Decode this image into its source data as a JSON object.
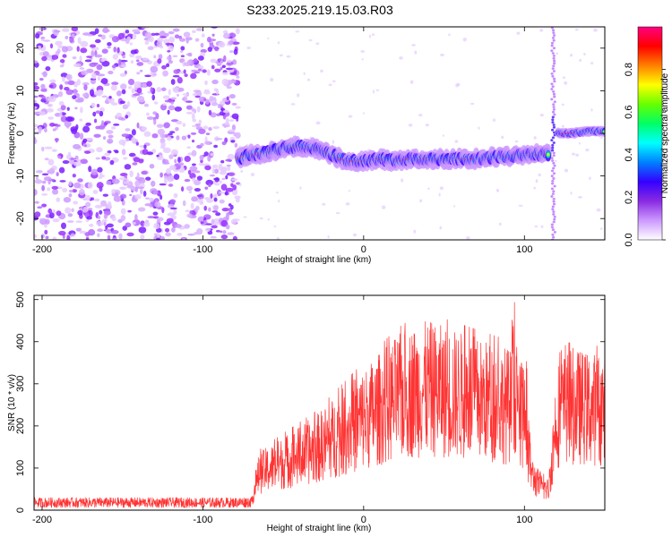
{
  "title": "S233.2025.219.15.03.R03",
  "chart_data": [
    {
      "type": "heatmap",
      "xlabel": "Height of straight line (km)",
      "ylabel": "Frequency (Hz)",
      "xlim": [
        -205,
        150
      ],
      "ylim": [
        -25,
        25
      ],
      "xticks": [
        -200,
        -100,
        0,
        100
      ],
      "yticks": [
        20,
        10,
        0,
        -10,
        -20
      ],
      "colorbar": {
        "label": "Normalized spectral amplitude",
        "range": [
          0,
          1
        ],
        "ticks": [
          "0.0",
          "0.2",
          "0.4",
          "0.6",
          "0.8"
        ],
        "colors": [
          "#ffffff",
          "#cc99ff",
          "#8a2be2",
          "#3300ff",
          "#0080ff",
          "#00ffff",
          "#00ff66",
          "#66ff00",
          "#ffff00",
          "#ff8000",
          "#ff0000",
          "#ff0080"
        ]
      },
      "ridge": {
        "x": [
          -78,
          -70,
          -60,
          -50,
          -40,
          -30,
          -20,
          -10,
          0,
          10,
          20,
          30,
          40,
          50,
          60,
          70,
          80,
          90,
          100,
          110,
          115
        ],
        "y": [
          -6,
          -5,
          -4.5,
          -3.5,
          -3,
          -3.5,
          -5,
          -6.5,
          -6.5,
          -6,
          -6.5,
          -6,
          -6,
          -6,
          -6,
          -6,
          -5.5,
          -5.5,
          -5,
          -5,
          -5
        ]
      },
      "ridge_late": {
        "x": [
          121,
          130,
          140,
          150
        ],
        "y": [
          0,
          0,
          0.5,
          0.5
        ]
      }
    },
    {
      "type": "line",
      "xlabel": "Height of straight line (km)",
      "ylabel": "SNR (10 * v/v)",
      "xlim": [
        -205,
        150
      ],
      "ylim": [
        0,
        510
      ],
      "xticks": [
        -200,
        -100,
        0,
        100
      ],
      "yticks": [
        0,
        100,
        200,
        300,
        400,
        500
      ],
      "color": "#ff3333",
      "envelope": {
        "x": [
          -205,
          -80,
          -70,
          -65,
          -50,
          -30,
          -10,
          0,
          10,
          20,
          30,
          40,
          50,
          60,
          70,
          80,
          90,
          95,
          100,
          105,
          110,
          115,
          120,
          125,
          130,
          140,
          150
        ],
        "y": [
          20,
          20,
          22,
          110,
          140,
          180,
          240,
          270,
          300,
          330,
          350,
          360,
          350,
          340,
          330,
          320,
          310,
          300,
          250,
          100,
          70,
          60,
          280,
          300,
          310,
          300,
          300
        ]
      }
    }
  ]
}
